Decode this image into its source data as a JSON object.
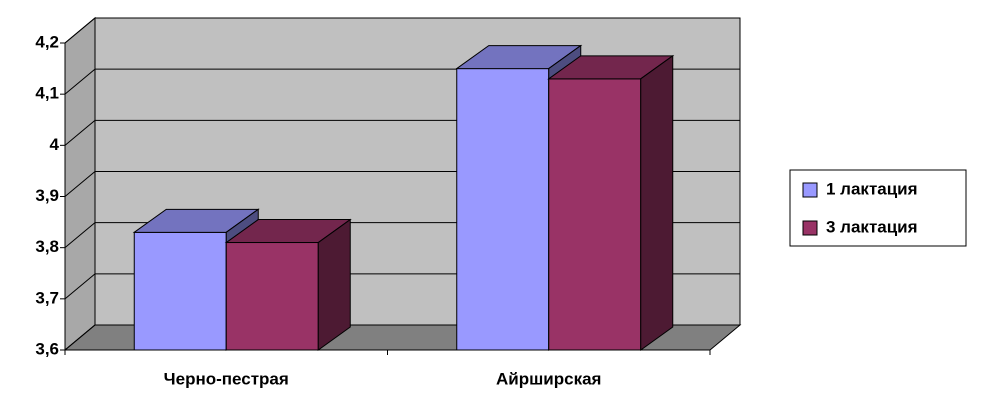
{
  "chart_data": {
    "type": "bar3d",
    "categories": [
      "Черно-пестрая",
      "Айрширская"
    ],
    "series": [
      {
        "name": "1 лактация",
        "color": "#9999ff",
        "values": [
          3.83,
          4.15
        ]
      },
      {
        "name": "3 лактация",
        "color": "#993366",
        "values": [
          3.81,
          4.13
        ]
      }
    ],
    "ylim": [
      3.6,
      4.2
    ],
    "yticks": [
      {
        "value": 3.6,
        "label": "3,6"
      },
      {
        "value": 3.7,
        "label": "3,7"
      },
      {
        "value": 3.8,
        "label": "3,8"
      },
      {
        "value": 3.9,
        "label": "3,9"
      },
      4,
      {
        "value": 4.1,
        "label": "4,1"
      },
      {
        "value": 4.2,
        "label": "4,2"
      }
    ],
    "grid": true,
    "legend": "right"
  }
}
